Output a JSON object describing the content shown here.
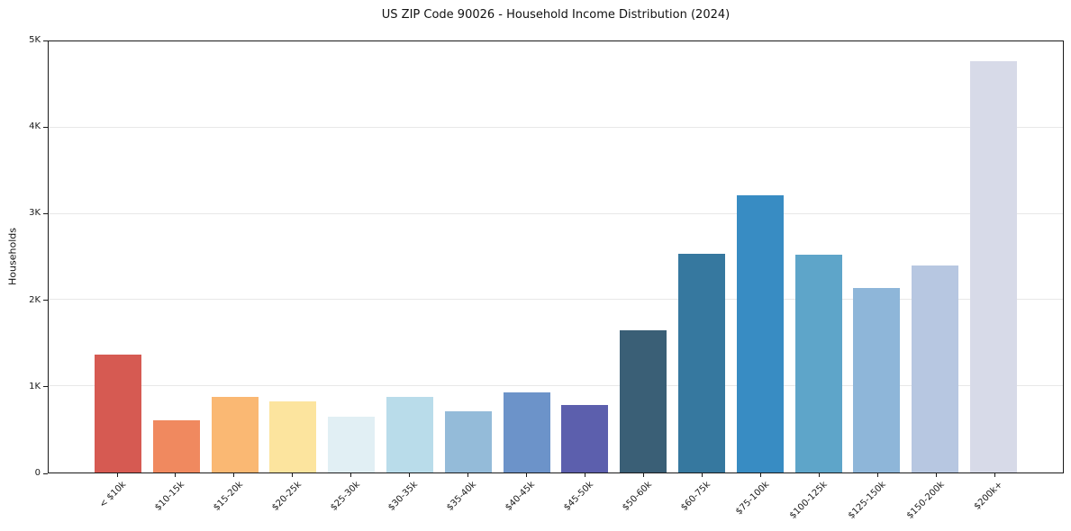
{
  "chart_data": {
    "type": "bar",
    "title": "US ZIP Code 90026 - Household Income Distribution (2024)",
    "xlabel": "",
    "ylabel": "Households",
    "ylim": [
      0,
      5000
    ],
    "grid": true,
    "legend": false,
    "y_tick_values": [
      0,
      1000,
      2000,
      3000,
      4000,
      5000
    ],
    "y_tick_labels": [
      "0",
      "1K",
      "2K",
      "3K",
      "4K",
      "5K"
    ],
    "categories": [
      "< $10k",
      "$10-15k",
      "$15-20k",
      "$20-25k",
      "$25-30k",
      "$30-35k",
      "$35-40k",
      "$40-45k",
      "$45-50k",
      "$50-60k",
      "$60-75k",
      "$75-100k",
      "$100-125k",
      "$125-150k",
      "$150-200k",
      "$200k+"
    ],
    "values": [
      1370,
      605,
      875,
      825,
      645,
      875,
      710,
      930,
      780,
      1645,
      2540,
      3210,
      2525,
      2140,
      2400,
      4770
    ],
    "bar_colors": [
      "#d65a52",
      "#f0895f",
      "#fab873",
      "#fce49e",
      "#e1eff4",
      "#b9dcea",
      "#94bbd9",
      "#6c93c9",
      "#5c5fad",
      "#3a5f76",
      "#36789f",
      "#388cc3",
      "#5ea5c9",
      "#8eb6d9",
      "#b7c7e1",
      "#d7dae8"
    ],
    "grid_color": "#e8e8e8",
    "spine_color": "#1a1a1a",
    "background_color": "#ffffff"
  }
}
